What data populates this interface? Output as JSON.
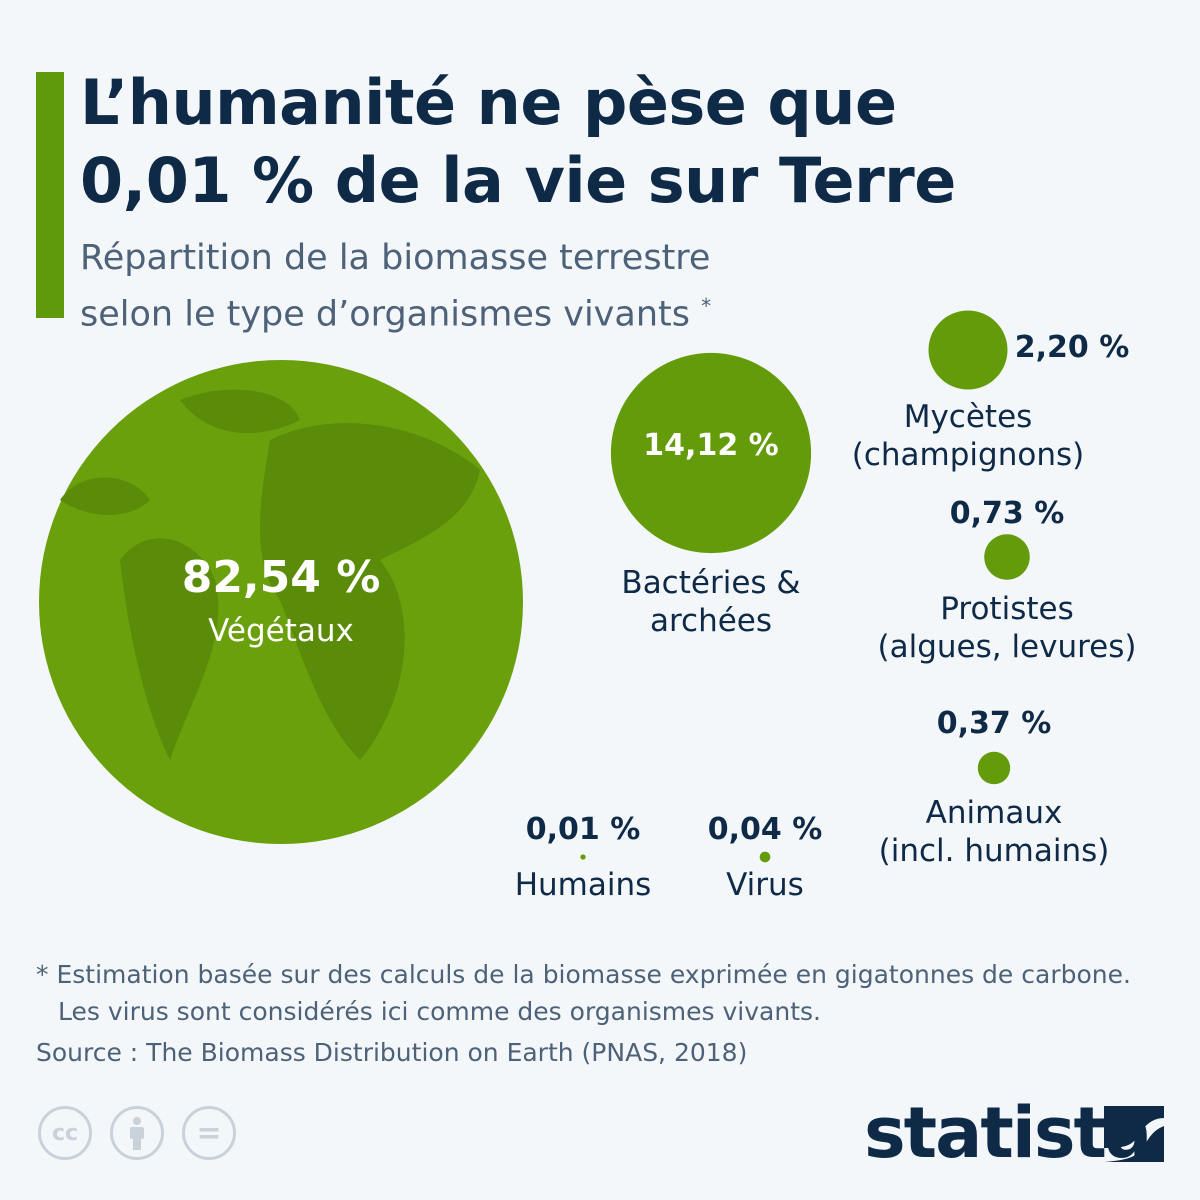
{
  "header": {
    "title_line1": "L’humanité ne pèse que",
    "title_line2": "0,01 % de la vie sur Terre",
    "subtitle_line1": "Répartition de la biomasse terrestre",
    "subtitle_line2": "selon le type d’organismes vivants",
    "subtitle_mark": "*"
  },
  "chart_data": {
    "type": "bubble",
    "title": "L’humanité ne pèse que 0,01 % de la vie sur Terre",
    "unit": "% of terrestrial biomass",
    "categories": [
      "Végétaux",
      "Bactéries & archées",
      "Mycètes (champignons)",
      "Protistes (algues, levures)",
      "Animaux (incl. humains)",
      "Humains",
      "Virus"
    ],
    "values": [
      82.54,
      14.12,
      2.2,
      0.73,
      0.37,
      0.01,
      0.04
    ],
    "value_labels": [
      "82,54 %",
      "14,12 %",
      "2,20 %",
      "0,73 %",
      "0,37 %",
      "0,01 %",
      "0,04 %"
    ],
    "label_lines": [
      [
        "Végétaux"
      ],
      [
        "Bactéries &",
        "archées"
      ],
      [
        "Mycètes",
        "(champignons)"
      ],
      [
        "Protistes",
        "(algues, levures)"
      ],
      [
        "Animaux",
        "(incl. humains)"
      ],
      [
        "Humains"
      ],
      [
        "Virus"
      ]
    ],
    "color": "#649b0a"
  },
  "footer": {
    "note_line1": "* Estimation basée sur des calculs de la biomasse exprimée en gigatonnes de carbone.",
    "note_line2": "Les virus sont considérés ici comme des organismes vivants.",
    "source": "Source : The Biomass Distribution on Earth (PNAS, 2018)",
    "brand": "statista"
  },
  "license_icons": [
    "cc-icon",
    "attribution-icon",
    "no-derivatives-icon"
  ],
  "license_labels": {
    "cc": "cc",
    "eq": "="
  }
}
